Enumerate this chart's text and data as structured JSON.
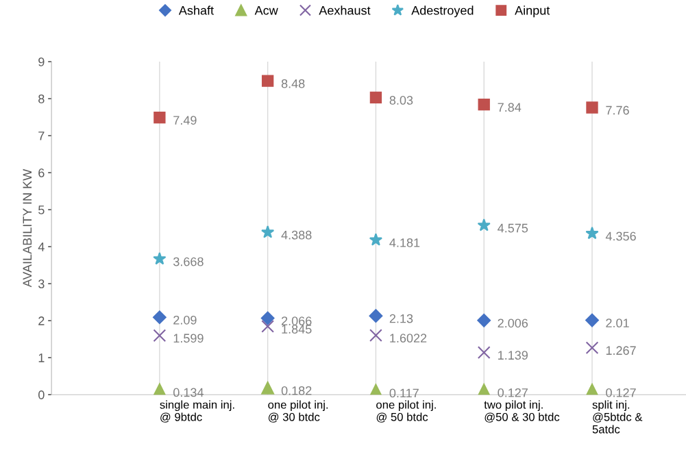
{
  "chart_data": {
    "type": "scatter",
    "ylabel": "AVAILABILITY IN KW",
    "categories": [
      null,
      "single main inj.\n@ 9btdc",
      "one pilot inj.\n@ 30 btdc",
      "one pilot inj.\n@ 50 btdc",
      "two pilot inj.\n@50 & 30 btdc",
      "split inj.\n@5btdc &\n5atdc"
    ],
    "series": [
      {
        "name": "Ashaft",
        "color": "#4472c4",
        "marker": "diamond",
        "values": [
          null,
          2.09,
          2.066,
          2.13,
          2.006,
          2.01
        ]
      },
      {
        "name": "Acw",
        "color": "#9bbb59",
        "marker": "triangle",
        "values": [
          null,
          0.134,
          0.182,
          0.117,
          0.127,
          0.127
        ]
      },
      {
        "name": "Aexhaust",
        "color": "#8064a2",
        "marker": "cross",
        "values": [
          null,
          1.599,
          1.845,
          1.6022,
          1.139,
          1.267
        ]
      },
      {
        "name": "Adestroyed",
        "color": "#4bacc6",
        "marker": "star",
        "values": [
          null,
          3.668,
          4.388,
          4.181,
          4.575,
          4.356
        ]
      },
      {
        "name": "Ainput",
        "color": "#c0504d",
        "marker": "square",
        "values": [
          null,
          7.49,
          8.48,
          8.03,
          7.84,
          7.76
        ]
      }
    ],
    "ylim": [
      0,
      9
    ],
    "yticks": [
      0,
      1,
      2,
      3,
      4,
      5,
      6,
      7,
      8,
      9
    ],
    "grid": "x",
    "legend": "top",
    "data_labels": true
  }
}
